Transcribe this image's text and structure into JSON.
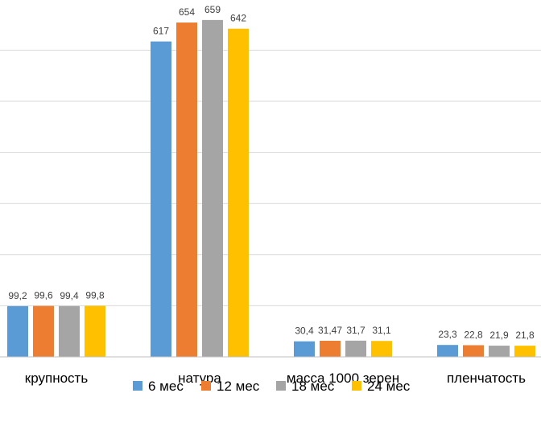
{
  "chart_data": {
    "type": "bar",
    "categories": [
      "крупность",
      "натура",
      "масса 1000 зерен",
      "пленчатость"
    ],
    "series": [
      {
        "name": "6 мес",
        "color": "#5b9bd5",
        "values": [
          99.2,
          617,
          30.4,
          23.3
        ],
        "labels": [
          "99,2",
          "617",
          "30,4",
          "23,3"
        ]
      },
      {
        "name": "12 мес",
        "color": "#ed7d31",
        "values": [
          99.6,
          654,
          31.47,
          22.8
        ],
        "labels": [
          "99,6",
          "654",
          "31,47",
          "22,8"
        ]
      },
      {
        "name": "18 мес",
        "color": "#a5a5a5",
        "values": [
          99.4,
          659,
          31.7,
          21.9
        ],
        "labels": [
          "99,4",
          "659",
          "31,7",
          "21,9"
        ]
      },
      {
        "name": "24 мес",
        "color": "#ffc000",
        "values": [
          99.8,
          642,
          31.1,
          21.8
        ],
        "labels": [
          "99,8",
          "642",
          "31,1",
          "21,8"
        ]
      }
    ],
    "ylim": [
      0,
      700
    ],
    "y_gridline_step": 100,
    "grid": true,
    "legend_position": "bottom",
    "title": "",
    "xlabel": "",
    "ylabel": ""
  }
}
